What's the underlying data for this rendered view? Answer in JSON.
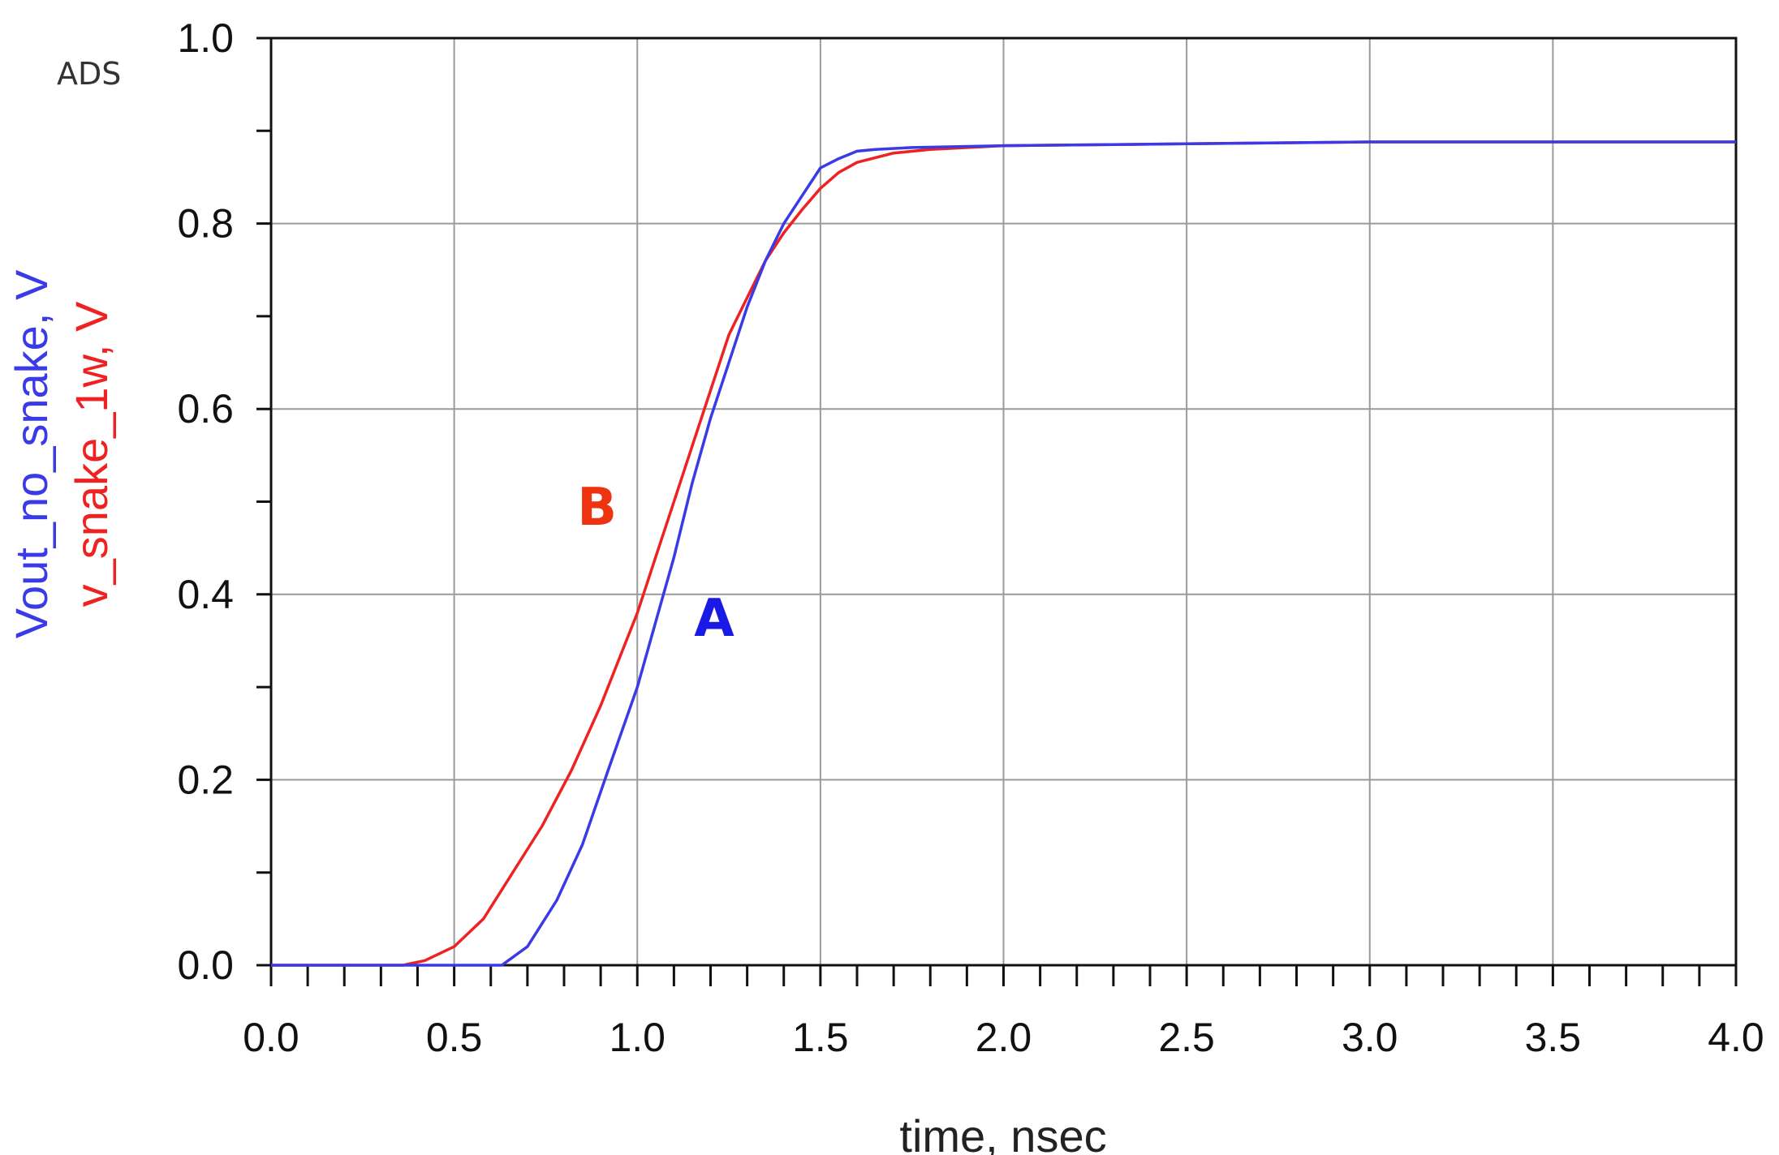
{
  "chart_data": {
    "type": "line",
    "watermark": "ADS",
    "xlabel": "time, nsec",
    "ylabel_lines": [
      {
        "text": "Vout_no_snake, V",
        "color": "#3a3ae6"
      },
      {
        "text": "v_snake_1w, V",
        "color": "#ee2222"
      }
    ],
    "xlim": [
      0.0,
      4.0
    ],
    "ylim": [
      0.0,
      1.0
    ],
    "xticks": [
      "0.0",
      "0.5",
      "1.0",
      "1.5",
      "2.0",
      "2.5",
      "3.0",
      "3.5",
      "4.0"
    ],
    "yticks": [
      "0.0",
      "0.2",
      "0.4",
      "0.6",
      "0.8",
      "1.0"
    ],
    "grid": true,
    "series": [
      {
        "name": "Vout_no_snake",
        "color": "#3a3ae6",
        "x": [
          0.0,
          0.63,
          0.7,
          0.78,
          0.85,
          0.92,
          1.0,
          1.05,
          1.1,
          1.15,
          1.2,
          1.25,
          1.3,
          1.35,
          1.4,
          1.45,
          1.5,
          1.55,
          1.6,
          1.65,
          1.75,
          2.0,
          2.5,
          3.0,
          4.0
        ],
        "y": [
          0.0,
          0.0,
          0.02,
          0.07,
          0.13,
          0.21,
          0.3,
          0.37,
          0.44,
          0.52,
          0.59,
          0.65,
          0.71,
          0.76,
          0.8,
          0.83,
          0.86,
          0.87,
          0.878,
          0.88,
          0.882,
          0.884,
          0.886,
          0.888,
          0.888
        ]
      },
      {
        "name": "v_snake_1w",
        "color": "#ee2222",
        "x": [
          0.0,
          0.36,
          0.42,
          0.5,
          0.58,
          0.66,
          0.74,
          0.82,
          0.9,
          0.96,
          1.0,
          1.05,
          1.1,
          1.15,
          1.2,
          1.25,
          1.3,
          1.35,
          1.4,
          1.45,
          1.5,
          1.55,
          1.6,
          1.7,
          1.8,
          2.0,
          2.5,
          3.0,
          4.0
        ],
        "y": [
          0.0,
          0.0,
          0.005,
          0.02,
          0.05,
          0.1,
          0.15,
          0.21,
          0.28,
          0.34,
          0.38,
          0.44,
          0.5,
          0.56,
          0.62,
          0.68,
          0.72,
          0.76,
          0.79,
          0.815,
          0.838,
          0.855,
          0.866,
          0.876,
          0.88,
          0.884,
          0.886,
          0.888,
          0.888
        ]
      }
    ],
    "annotations": [
      {
        "text": "B",
        "x": 0.89,
        "y": 0.475,
        "color": "#ee3311"
      },
      {
        "text": "A",
        "x": 1.21,
        "y": 0.355,
        "color": "#1a1ae6"
      }
    ]
  }
}
